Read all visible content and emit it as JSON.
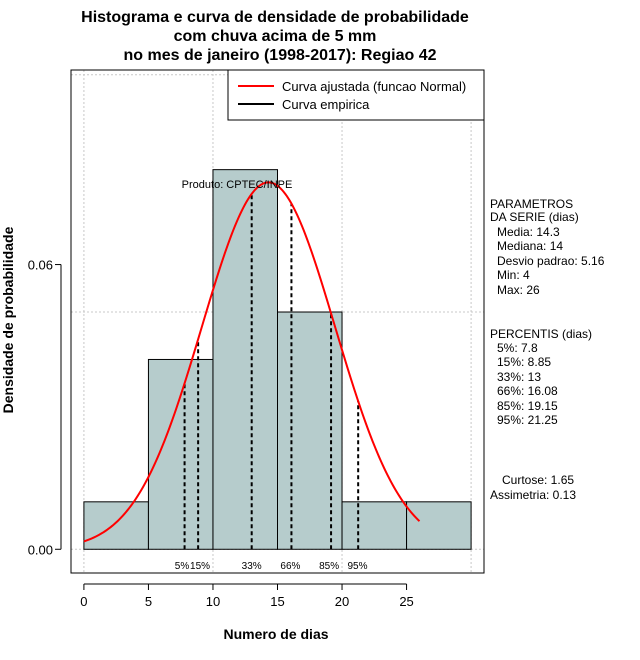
{
  "chart_data": {
    "type": "histogram",
    "title_lines": [
      "Histograma e curva de densidade de probabilidade",
      "com chuva acima de 5 mm",
      "no mes de janeiro (1998-2017): Regiao 42"
    ],
    "xlabel": "Numero de dias",
    "ylabel": "Densidade de probabilidade",
    "xlim": [
      -1,
      31
    ],
    "ylim": [
      -0.005,
      0.101
    ],
    "x_ticks": [
      0,
      5,
      10,
      15,
      20,
      25
    ],
    "x_tick_labels": [
      "0",
      "5",
      "10",
      "15",
      "20",
      "25"
    ],
    "y_ticks": [
      0.0,
      0.06
    ],
    "y_tick_labels": [
      "0.00",
      "0.06"
    ],
    "x_grid": [
      0,
      10,
      20,
      30
    ],
    "y_grid": [
      0.0,
      0.05,
      0.1
    ],
    "bins": [
      {
        "start": 0,
        "end": 5,
        "density": 0.01
      },
      {
        "start": 5,
        "end": 10,
        "density": 0.04
      },
      {
        "start": 10,
        "end": 15,
        "density": 0.08
      },
      {
        "start": 15,
        "end": 20,
        "density": 0.05
      },
      {
        "start": 20,
        "end": 25,
        "density": 0.01
      },
      {
        "start": 25,
        "end": 30,
        "density": 0.01
      }
    ],
    "normal_curve": {
      "mean": 14.3,
      "sd": 5.16,
      "x_range": [
        0,
        26
      ]
    },
    "percentiles": [
      {
        "label": "5%",
        "value": 7.8
      },
      {
        "label": "15%",
        "value": 8.85
      },
      {
        "label": "33%",
        "value": 13
      },
      {
        "label": "66%",
        "value": 16.08
      },
      {
        "label": "85%",
        "value": 19.15
      },
      {
        "label": "95%",
        "value": 21.25
      }
    ],
    "percentile_marks": [
      "5%",
      "15%",
      "33%",
      "66%",
      "85%",
      "95%"
    ],
    "legend": [
      {
        "label": "Curva ajustada (funcao Normal)",
        "color": "#ff0000"
      },
      {
        "label": "Curva empirica",
        "color": "#000000"
      }
    ],
    "legend_position": "top-right",
    "annotation": "Produto: CPTEC/INPE",
    "bar_color": "#b6cccc",
    "curve_color": "#ff0000"
  },
  "side_panel": {
    "params_title_1": "PARAMETROS",
    "params_title_2": "DA SERIE (dias)",
    "params": [
      "Media: 14.3",
      "Mediana: 14",
      "Desvio padrao: 5.16",
      "Min: 4",
      "Max: 26"
    ],
    "pct_title": "PERCENTIS (dias)",
    "pct_lines": [
      "5%: 7.8",
      "15%: 8.85",
      "33%: 13",
      "66%: 16.08",
      "85%: 19.15",
      "95%: 21.25"
    ],
    "curtose": "Curtose: 1.65",
    "assimetria": "Assimetria: 0.13"
  }
}
